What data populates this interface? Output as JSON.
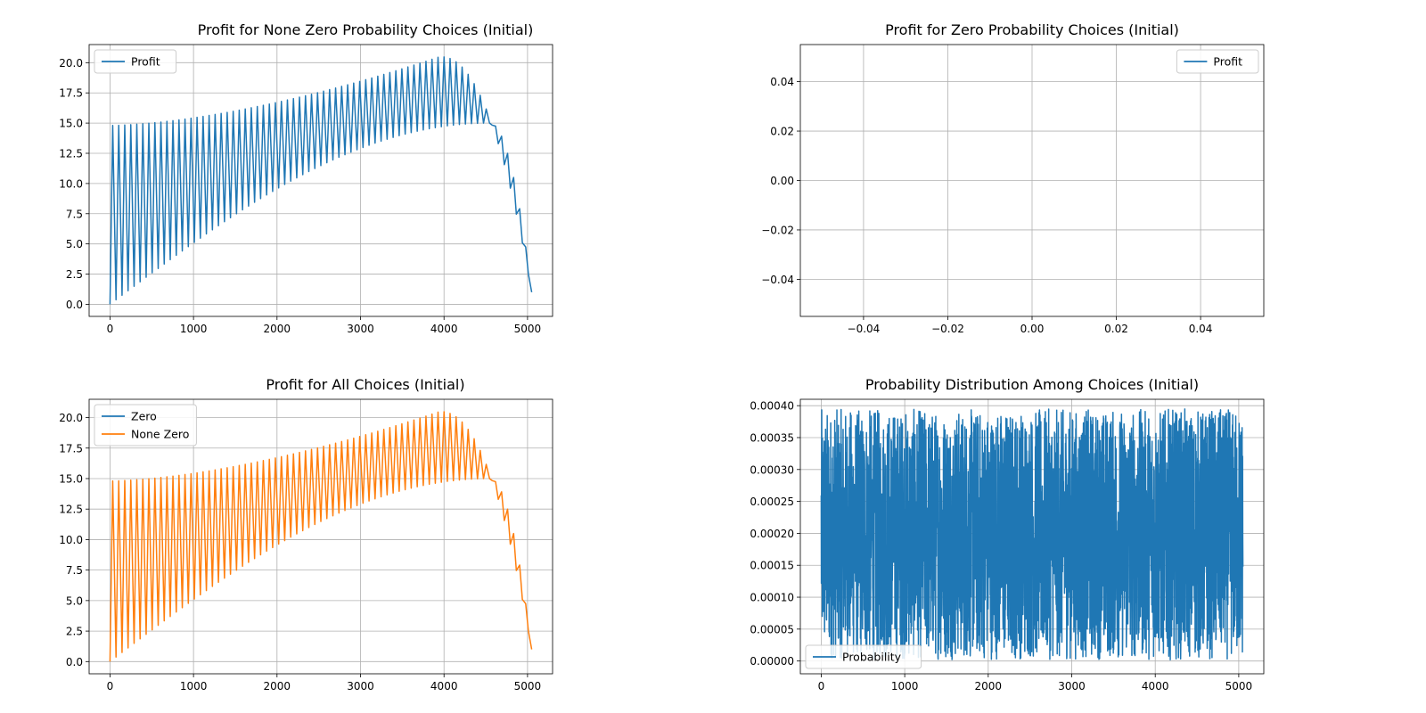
{
  "chart_data": [
    {
      "id": "tl",
      "type": "line",
      "title": "Profit for None Zero Probability Choices (Initial)",
      "xlabel": "",
      "ylabel": "",
      "xlim": [
        -250,
        5300
      ],
      "ylim": [
        -1.0,
        21.5
      ],
      "xticks": [
        0,
        1000,
        2000,
        3000,
        4000,
        5000
      ],
      "xtick_labels": [
        "0",
        "1000",
        "2000",
        "3000",
        "4000",
        "5000"
      ],
      "yticks": [
        0,
        2.5,
        5,
        7.5,
        10,
        12.5,
        15,
        17.5,
        20
      ],
      "ytick_labels": [
        "0.0",
        "2.5",
        "5.0",
        "7.5",
        "10.0",
        "12.5",
        "15.0",
        "17.5",
        "20.0"
      ],
      "grid": true,
      "legend_position": "upper-left",
      "series": [
        {
          "name": "Profit",
          "color": "#1f77b4",
          "generator": {
            "x_end": 5050,
            "cycles": 70,
            "lower_start": 0,
            "lower_peak": 15,
            "lower_peak_x": 4550,
            "upper_start": 14.8,
            "upper_peak": 20.5,
            "upper_peak_x": 3950,
            "end_value": 1
          }
        }
      ]
    },
    {
      "id": "tr",
      "type": "line",
      "title": "Profit for Zero Probability Choices (Initial)",
      "xlabel": "",
      "ylabel": "",
      "xlim": [
        -0.055,
        0.055
      ],
      "ylim": [
        -0.055,
        0.055
      ],
      "xticks": [
        -0.04,
        -0.02,
        0,
        0.02,
        0.04
      ],
      "xtick_labels": [
        "−0.04",
        "−0.02",
        "0.00",
        "0.02",
        "0.04"
      ],
      "yticks": [
        -0.04,
        -0.02,
        0,
        0.02,
        0.04
      ],
      "ytick_labels": [
        "−0.04",
        "−0.02",
        "0.00",
        "0.02",
        "0.04"
      ],
      "grid": true,
      "legend_position": "upper-right",
      "series": [
        {
          "name": "Profit",
          "color": "#1f77b4",
          "values": []
        }
      ]
    },
    {
      "id": "bl",
      "type": "line",
      "title": "Profit for All Choices (Initial)",
      "xlabel": "",
      "ylabel": "",
      "xlim": [
        -250,
        5300
      ],
      "ylim": [
        -1.0,
        21.5
      ],
      "xticks": [
        0,
        1000,
        2000,
        3000,
        4000,
        5000
      ],
      "xtick_labels": [
        "0",
        "1000",
        "2000",
        "3000",
        "4000",
        "5000"
      ],
      "yticks": [
        0,
        2.5,
        5,
        7.5,
        10,
        12.5,
        15,
        17.5,
        20
      ],
      "ytick_labels": [
        "0.0",
        "2.5",
        "5.0",
        "7.5",
        "10.0",
        "12.5",
        "15.0",
        "17.5",
        "20.0"
      ],
      "grid": true,
      "legend_position": "upper-left",
      "series": [
        {
          "name": "Zero",
          "color": "#1f77b4",
          "values": []
        },
        {
          "name": "None Zero",
          "color": "#ff7f0e",
          "generator": {
            "x_end": 5050,
            "cycles": 70,
            "lower_start": 0,
            "lower_peak": 15,
            "lower_peak_x": 4550,
            "upper_start": 14.8,
            "upper_peak": 20.5,
            "upper_peak_x": 3950,
            "end_value": 1
          }
        }
      ]
    },
    {
      "id": "br",
      "type": "line",
      "title": "Probability Distribution Among Choices (Initial)",
      "xlabel": "",
      "ylabel": "",
      "xlim": [
        -250,
        5300
      ],
      "ylim": [
        -2e-05,
        0.00041
      ],
      "xticks": [
        0,
        1000,
        2000,
        3000,
        4000,
        5000
      ],
      "xtick_labels": [
        "0",
        "1000",
        "2000",
        "3000",
        "4000",
        "5000"
      ],
      "yticks": [
        0,
        5e-05,
        0.0001,
        0.00015,
        0.0002,
        0.00025,
        0.0003,
        0.00035,
        0.0004
      ],
      "ytick_labels": [
        "0.00000",
        "0.00005",
        "0.00010",
        "0.00015",
        "0.00020",
        "0.00025",
        "0.00030",
        "0.00035",
        "0.00040"
      ],
      "grid": true,
      "legend_position": "lower-left",
      "series": [
        {
          "name": "Probability",
          "color": "#1f77b4",
          "generator": {
            "x_end": 5050,
            "min": 2e-06,
            "max": 0.000395,
            "note": "uniform random noise"
          }
        }
      ]
    }
  ]
}
